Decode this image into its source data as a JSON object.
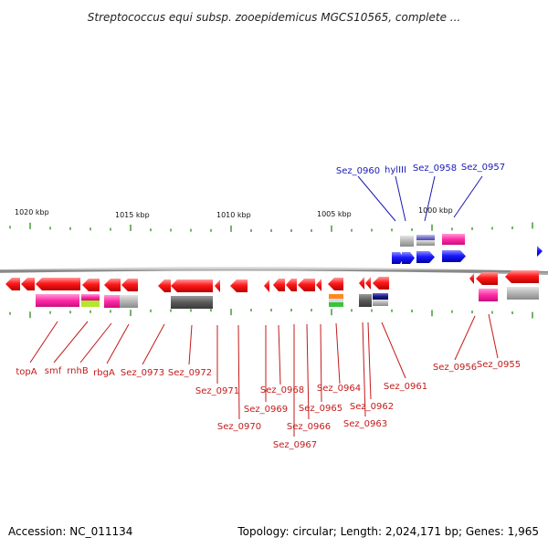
{
  "title": "Streptococcus equi subsp. zooepidemicus MGCS10565, complete ...",
  "footer": {
    "accession": "Accession: NC_011134",
    "summary": "Topology: circular; Length: 2,024,171 bp; Genes: 1,965"
  },
  "scale": {
    "labels": [
      "1020 kbp",
      "1015 kbp",
      "1010 kbp",
      "1005 kbp",
      "1000 kbp"
    ]
  },
  "colors": {
    "forward_gene": "#0000e6",
    "reverse_gene": "#ff0000",
    "forward_label": "#1a1ab4",
    "reverse_label": "#c41a1a",
    "backbone": "#888888",
    "tick": "#2a8a1a"
  },
  "genes": {
    "forward": [
      "Sez_0960",
      "hylIII",
      "Sez_0958",
      "Sez_0957"
    ],
    "reverse": [
      "topA",
      "smf",
      "rnhB",
      "rbgA",
      "Sez_0973",
      "Sez_0972",
      "Sez_0971",
      "Sez_0970",
      "Sez_0969",
      "Sez_0968",
      "Sez_0967",
      "Sez_0966",
      "Sez_0965",
      "Sez_0964",
      "Sez_0963",
      "Sez_0962",
      "Sez_0961",
      "Sez_0956",
      "Sez_0955"
    ]
  }
}
